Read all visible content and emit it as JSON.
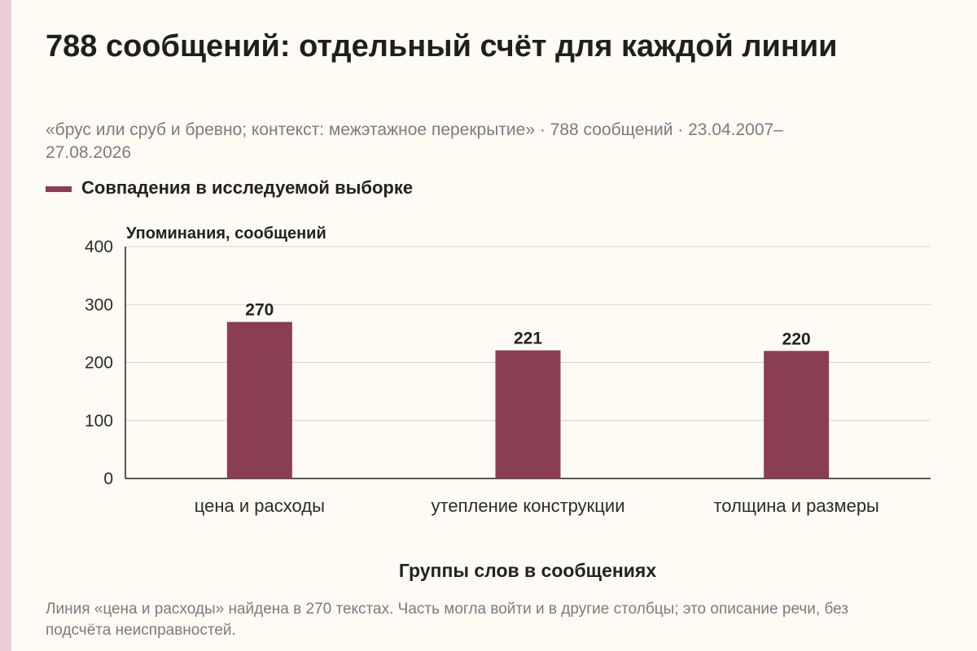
{
  "title": "788 сообщений: отдельный счёт для каждой линии",
  "subtitle": "«брус или сруб и бревно; контекст: межэтажное перекрытие» · 788 сообщений · 23.04.2007–27.08.2026",
  "legend_label": "Совпадения в исследуемой выборке",
  "footnote": "Линия «цена и расходы» найдена в 270 текстах. Часть могла войти и в другие столбцы; это описание речи, без подсчёта неисправностей.",
  "colors": {
    "bar": "#8b3d52",
    "background": "#fdfbf4",
    "stripe": "#ecccd6",
    "muted_text": "#87767e"
  },
  "chart_data": {
    "type": "bar",
    "categories": [
      "цена и расходы",
      "утепление конструкции",
      "толщина и размеры"
    ],
    "series": [
      {
        "name": "Совпадения в исследуемой выборке",
        "values": [
          270,
          221,
          220
        ]
      }
    ],
    "ylabel": "Упоминания, сообщений",
    "xlabel": "Группы слов в сообщениях",
    "ylim": [
      0,
      400
    ],
    "yticks": [
      0,
      100,
      200,
      300,
      400
    ],
    "grid": true,
    "data_labels": true,
    "legend_position": "top-left"
  }
}
